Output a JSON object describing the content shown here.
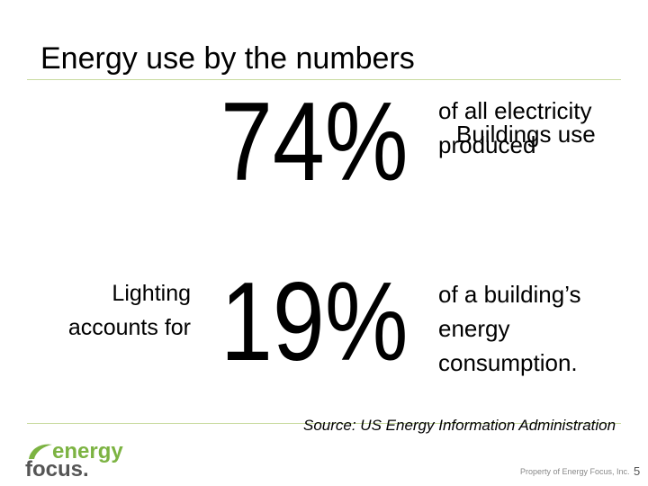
{
  "header": {
    "title": "Energy use by the numbers"
  },
  "rows": [
    {
      "lead": "",
      "figure": "74%",
      "text": "of all electricity produced",
      "overlay": "Buildings use"
    },
    {
      "lead": "Lighting accounts for",
      "figure": "19%",
      "text": "of a building’s energy consumption."
    }
  ],
  "source": "Source: US Energy Information Administration",
  "footer": {
    "logo_top": "energy",
    "logo_bottom": "focus.",
    "property": "Property of Energy Focus, Inc.",
    "page": "5"
  }
}
